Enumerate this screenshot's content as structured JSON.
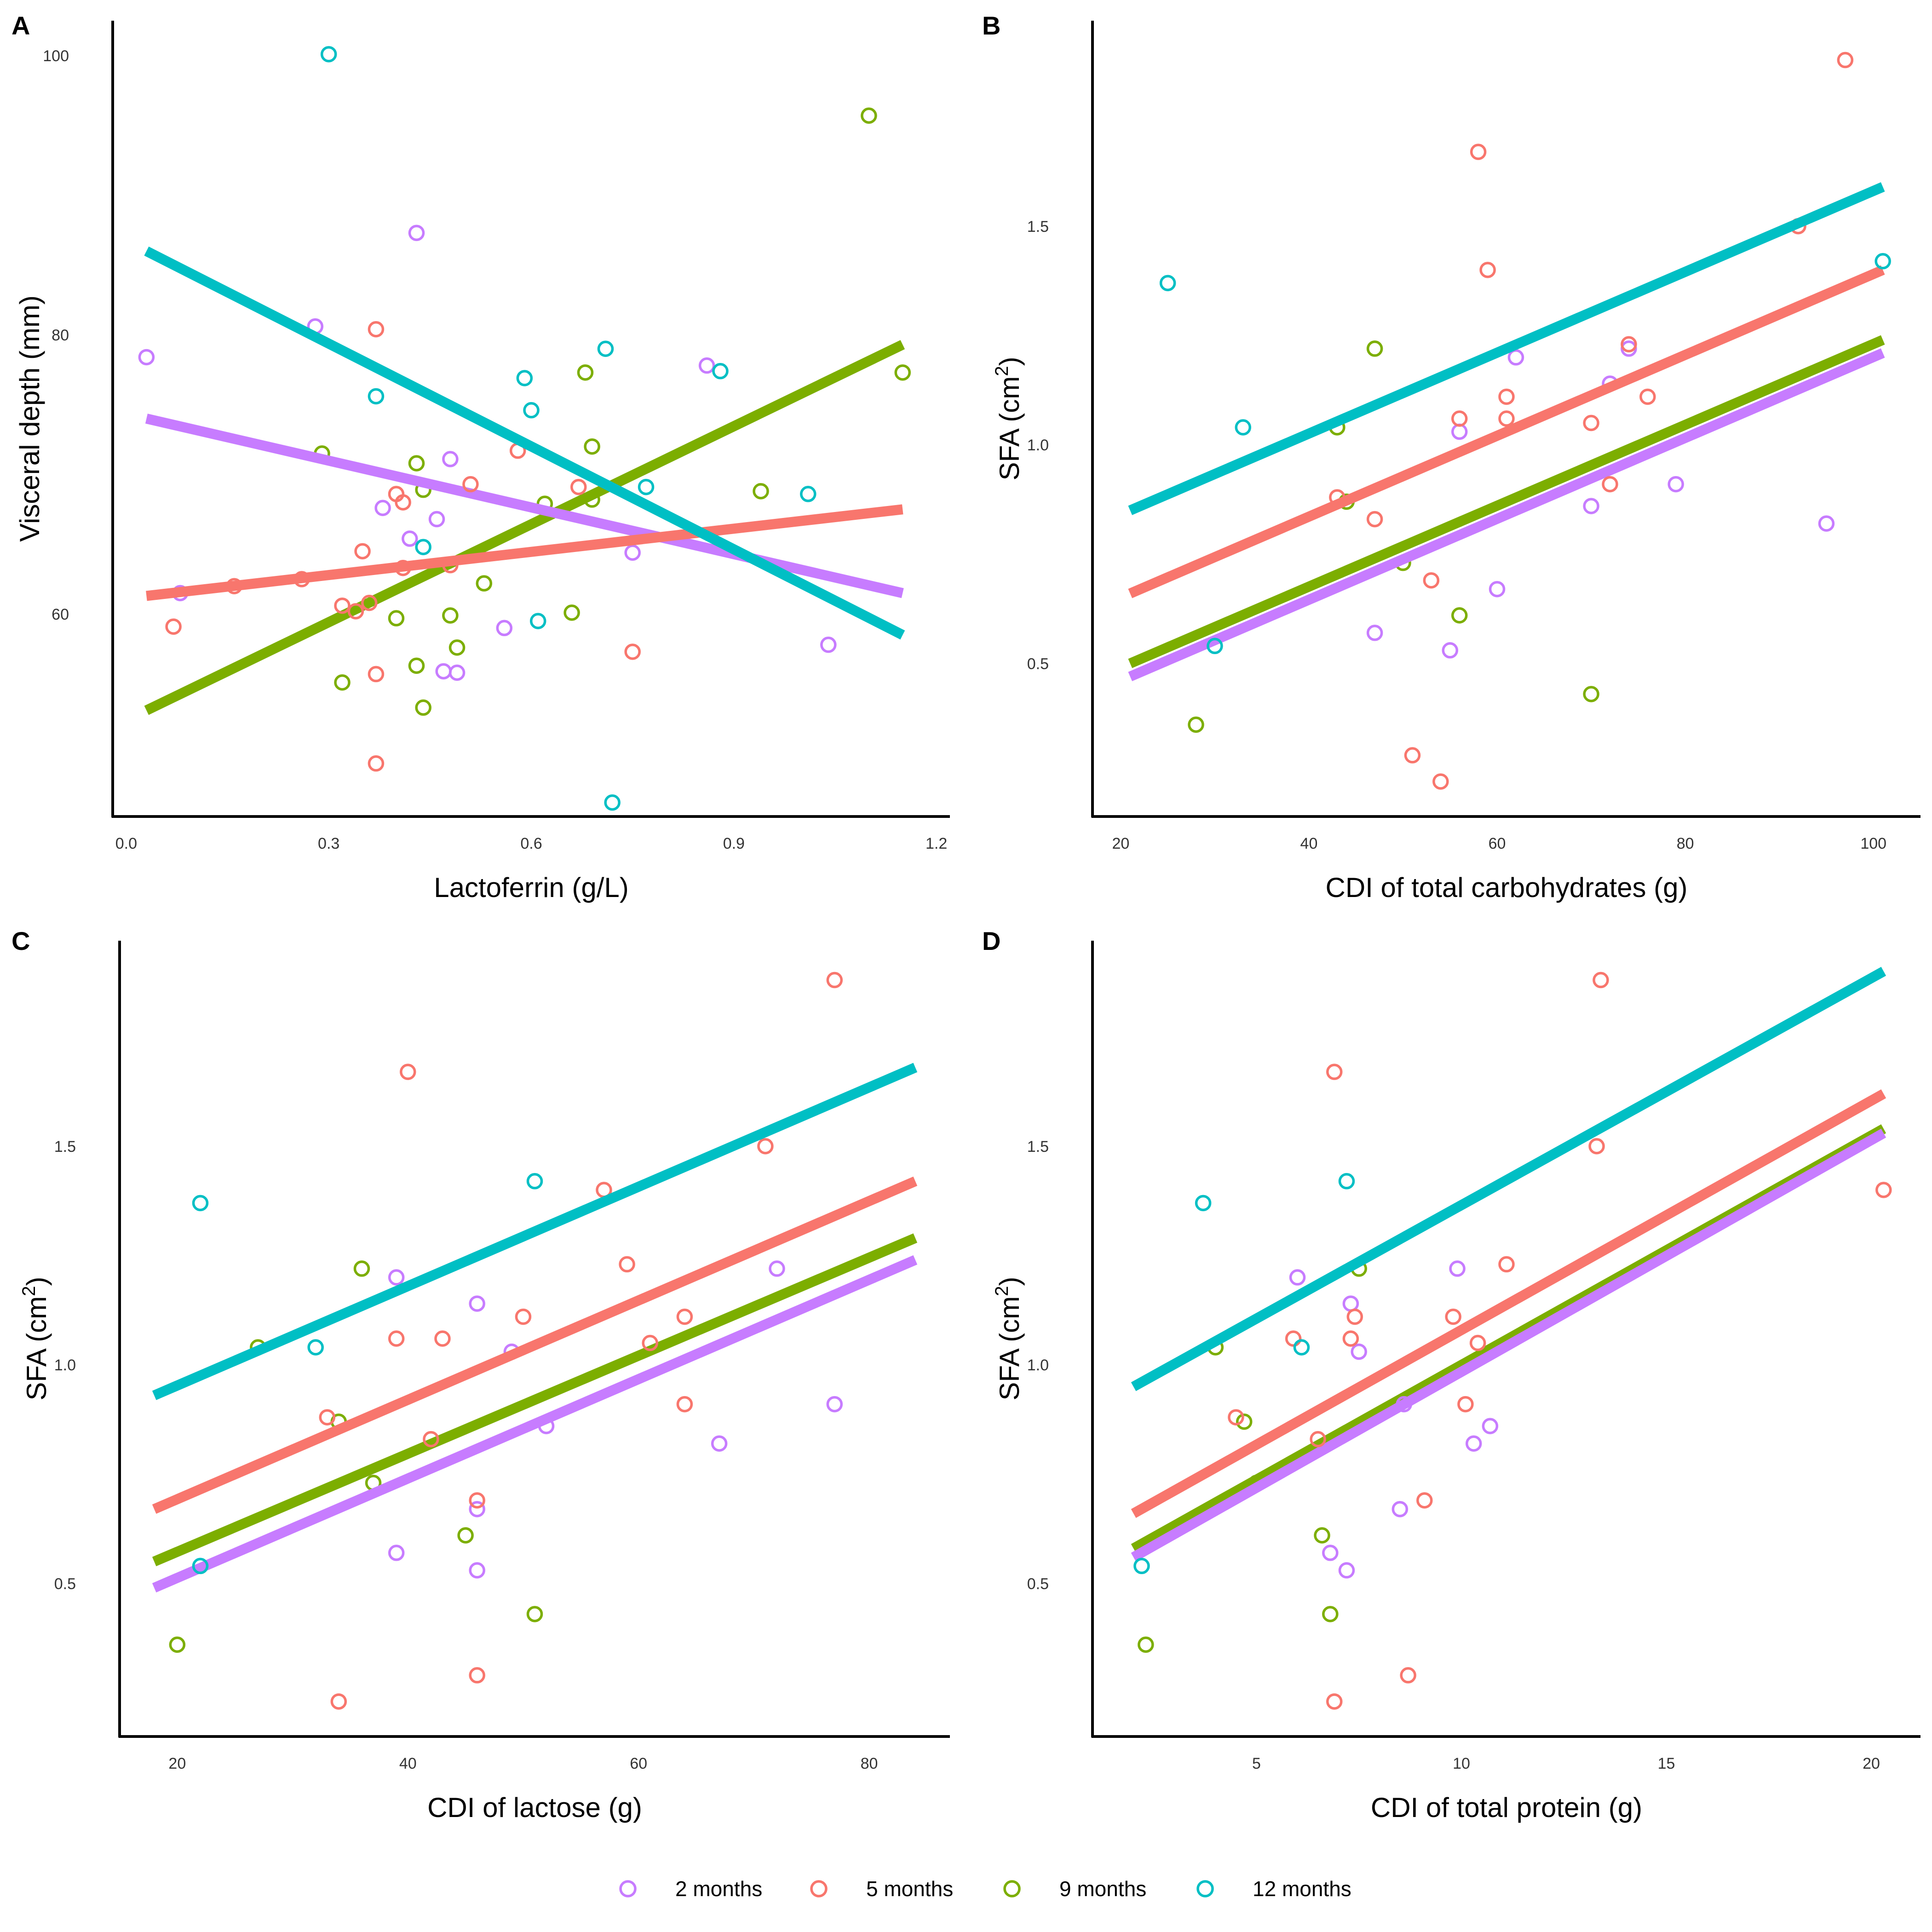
{
  "legend": [
    {
      "label": "2 months",
      "color": "#C77CFF"
    },
    {
      "label": "5 months",
      "color": "#F8766D"
    },
    {
      "label": "9 months",
      "color": "#7CAE00"
    },
    {
      "label": "12 months",
      "color": "#00BFC4"
    }
  ],
  "chart_data": [
    {
      "panel": "A",
      "type": "scatter",
      "xlabel": "Lactoferrin (g/L)",
      "ylabel": "Visceral depth (mm)",
      "xlim": [
        -0.02,
        1.22
      ],
      "ylim": [
        45.5,
        102.5
      ],
      "xticks": [
        0.0,
        0.3,
        0.6,
        0.9,
        1.2
      ],
      "xtick_labels": [
        "0.0",
        "0.3",
        "0.6",
        "0.9",
        "1.2"
      ],
      "yticks": [
        60,
        80,
        100
      ],
      "ytick_labels": [
        "60",
        "80",
        "100"
      ],
      "series": [
        {
          "name": "2 months",
          "points": [
            [
              0.03,
              78.4
            ],
            [
              0.08,
              61.5
            ],
            [
              0.28,
              80.6
            ],
            [
              0.38,
              67.6
            ],
            [
              0.43,
              87.3
            ],
            [
              0.42,
              65.4
            ],
            [
              0.46,
              66.8
            ],
            [
              0.48,
              71.1
            ],
            [
              0.47,
              55.9
            ],
            [
              0.49,
              55.8
            ],
            [
              0.56,
              59.0
            ],
            [
              0.75,
              64.4
            ],
            [
              0.86,
              77.8
            ],
            [
              1.04,
              57.8
            ]
          ],
          "fit": [
            [
              0.03,
              74.0
            ],
            [
              1.15,
              61.5
            ]
          ]
        },
        {
          "name": "5 months",
          "points": [
            [
              0.07,
              59.1
            ],
            [
              0.16,
              62.0
            ],
            [
              0.26,
              62.5
            ],
            [
              0.32,
              60.6
            ],
            [
              0.34,
              60.2
            ],
            [
              0.35,
              64.5
            ],
            [
              0.36,
              60.8
            ],
            [
              0.37,
              55.7
            ],
            [
              0.37,
              80.4
            ],
            [
              0.37,
              49.3
            ],
            [
              0.4,
              68.6
            ],
            [
              0.41,
              68.0
            ],
            [
              0.41,
              63.3
            ],
            [
              0.48,
              63.5
            ],
            [
              0.51,
              69.3
            ],
            [
              0.58,
              71.7
            ],
            [
              0.67,
              69.1
            ],
            [
              0.75,
              57.3
            ]
          ],
          "fit": [
            [
              0.03,
              61.3
            ],
            [
              1.15,
              67.5
            ]
          ]
        },
        {
          "name": "9 months",
          "points": [
            [
              0.29,
              71.5
            ],
            [
              0.32,
              55.1
            ],
            [
              0.4,
              59.7
            ],
            [
              0.43,
              70.8
            ],
            [
              0.43,
              56.3
            ],
            [
              0.44,
              53.3
            ],
            [
              0.44,
              68.9
            ],
            [
              0.48,
              59.9
            ],
            [
              0.49,
              57.6
            ],
            [
              0.53,
              62.2
            ],
            [
              0.62,
              67.9
            ],
            [
              0.66,
              60.1
            ],
            [
              0.68,
              77.3
            ],
            [
              0.69,
              72.0
            ],
            [
              0.69,
              68.2
            ],
            [
              0.94,
              68.8
            ],
            [
              1.1,
              95.7
            ],
            [
              1.15,
              77.3
            ]
          ],
          "fit": [
            [
              0.03,
              53.1
            ],
            [
              1.15,
              79.3
            ]
          ]
        },
        {
          "name": "12 months",
          "points": [
            [
              0.3,
              100.1
            ],
            [
              0.37,
              75.6
            ],
            [
              0.44,
              64.8
            ],
            [
              0.59,
              76.9
            ],
            [
              0.6,
              74.6
            ],
            [
              0.61,
              59.5
            ],
            [
              0.71,
              79.0
            ],
            [
              0.72,
              46.5
            ],
            [
              0.77,
              69.1
            ],
            [
              0.88,
              77.4
            ],
            [
              1.01,
              68.6
            ]
          ],
          "fit": [
            [
              0.03,
              86.0
            ],
            [
              1.15,
              58.5
            ]
          ]
        }
      ]
    },
    {
      "panel": "B",
      "type": "scatter",
      "xlabel": "CDI of total carbohydrates (g)",
      "ylabel_main": "SFA (cm",
      "ylabel_sup": "2",
      "ylabel_end": ")",
      "xlim": [
        17,
        105
      ],
      "ylim": [
        0.15,
        1.97
      ],
      "xticks": [
        20,
        40,
        60,
        80,
        100
      ],
      "xtick_labels": [
        "20",
        "40",
        "60",
        "80",
        "100"
      ],
      "yticks": [
        0.5,
        1.0,
        1.5
      ],
      "ytick_labels": [
        "0.5",
        "1.0",
        "1.5"
      ],
      "series": [
        {
          "name": "2 months",
          "points": [
            [
              47,
              0.57
            ],
            [
              55,
              0.53
            ],
            [
              56,
              1.03
            ],
            [
              60,
              0.67
            ],
            [
              62,
              1.2
            ],
            [
              70,
              0.86
            ],
            [
              72,
              1.14
            ],
            [
              74,
              1.22
            ],
            [
              79,
              0.91
            ],
            [
              95,
              0.82
            ]
          ],
          "fit": [
            [
              21,
              0.47
            ],
            [
              101,
              1.21
            ]
          ]
        },
        {
          "name": "5 months",
          "points": [
            [
              43,
              0.88
            ],
            [
              47,
              0.83
            ],
            [
              51,
              0.29
            ],
            [
              53,
              0.69
            ],
            [
              54,
              0.23
            ],
            [
              56,
              1.06
            ],
            [
              58,
              1.67
            ],
            [
              59,
              1.4
            ],
            [
              61,
              1.11
            ],
            [
              61,
              1.06
            ],
            [
              70,
              1.05
            ],
            [
              72,
              0.91
            ],
            [
              74,
              1.23
            ],
            [
              76,
              1.11
            ],
            [
              92,
              1.5
            ],
            [
              97,
              1.88
            ]
          ],
          "fit": [
            [
              21,
              0.66
            ],
            [
              101,
              1.4
            ]
          ]
        },
        {
          "name": "9 months",
          "points": [
            [
              28,
              0.36
            ],
            [
              43,
              1.04
            ],
            [
              44,
              0.87
            ],
            [
              47,
              1.22
            ],
            [
              50,
              0.73
            ],
            [
              56,
              0.61
            ],
            [
              70,
              0.43
            ]
          ],
          "fit": [
            [
              21,
              0.5
            ],
            [
              101,
              1.24
            ]
          ]
        },
        {
          "name": "12 months",
          "points": [
            [
              25,
              1.37
            ],
            [
              30,
              0.54
            ],
            [
              33,
              1.04
            ],
            [
              101,
              1.42
            ]
          ],
          "fit": [
            [
              21,
              0.85
            ],
            [
              101,
              1.59
            ]
          ]
        }
      ]
    },
    {
      "panel": "C",
      "type": "scatter",
      "xlabel": "CDI of lactose (g)",
      "ylabel_main": "SFA (cm",
      "ylabel_sup": "2",
      "ylabel_end": ")",
      "xlim": [
        15,
        87
      ],
      "ylim": [
        0.15,
        1.97
      ],
      "xticks": [
        20,
        40,
        60,
        80
      ],
      "xtick_labels": [
        "20",
        "40",
        "60",
        "80"
      ],
      "yticks": [
        0.5,
        1.0,
        1.5
      ],
      "ytick_labels": [
        "0.5",
        "1.0",
        "1.5"
      ],
      "series": [
        {
          "name": "2 months",
          "points": [
            [
              39,
              0.57
            ],
            [
              39,
              1.2
            ],
            [
              46,
              1.14
            ],
            [
              46,
              0.67
            ],
            [
              46,
              0.53
            ],
            [
              49,
              1.03
            ],
            [
              52,
              0.86
            ],
            [
              67,
              0.82
            ],
            [
              72,
              1.22
            ],
            [
              77,
              0.91
            ]
          ],
          "fit": [
            [
              18,
              0.49
            ],
            [
              84,
              1.24
            ]
          ]
        },
        {
          "name": "5 months",
          "points": [
            [
              33,
              0.88
            ],
            [
              34,
              0.23
            ],
            [
              39,
              1.06
            ],
            [
              40,
              1.67
            ],
            [
              42,
              0.83
            ],
            [
              43,
              1.06
            ],
            [
              46,
              0.69
            ],
            [
              46,
              0.29
            ],
            [
              50,
              1.11
            ],
            [
              57,
              1.4
            ],
            [
              59,
              1.23
            ],
            [
              61,
              1.05
            ],
            [
              64,
              0.91
            ],
            [
              64,
              1.11
            ],
            [
              71,
              1.5
            ],
            [
              77,
              1.88
            ]
          ],
          "fit": [
            [
              18,
              0.67
            ],
            [
              84,
              1.42
            ]
          ]
        },
        {
          "name": "9 months",
          "points": [
            [
              20,
              0.36
            ],
            [
              27,
              1.04
            ],
            [
              34,
              0.87
            ],
            [
              36,
              1.22
            ],
            [
              37,
              0.73
            ],
            [
              45,
              0.61
            ],
            [
              51,
              0.43
            ]
          ],
          "fit": [
            [
              18,
              0.55
            ],
            [
              84,
              1.29
            ]
          ]
        },
        {
          "name": "12 months",
          "points": [
            [
              22,
              1.37
            ],
            [
              22,
              0.54
            ],
            [
              32,
              1.04
            ],
            [
              51,
              1.42
            ]
          ],
          "fit": [
            [
              18,
              0.93
            ],
            [
              84,
              1.68
            ]
          ]
        }
      ]
    },
    {
      "panel": "D",
      "type": "scatter",
      "xlabel": "CDI of total protein (g)",
      "ylabel_main": "SFA (cm",
      "ylabel_sup": "2",
      "ylabel_end": ")",
      "xlim": [
        1.0,
        21.2
      ],
      "ylim": [
        0.15,
        1.97
      ],
      "xticks": [
        5,
        10,
        15,
        20
      ],
      "xtick_labels": [
        "5",
        "10",
        "15",
        "20"
      ],
      "yticks": [
        0.5,
        1.0,
        1.5
      ],
      "ytick_labels": [
        "0.5",
        "1.0",
        "1.5"
      ],
      "series": [
        {
          "name": "2 months",
          "points": [
            [
              6.0,
              1.2
            ],
            [
              6.8,
              0.57
            ],
            [
              7.2,
              0.53
            ],
            [
              7.3,
              1.14
            ],
            [
              7.5,
              1.03
            ],
            [
              8.5,
              0.67
            ],
            [
              8.6,
              0.91
            ],
            [
              9.9,
              1.22
            ],
            [
              10.3,
              0.82
            ],
            [
              10.7,
              0.86
            ]
          ],
          "fit": [
            [
              2.0,
              0.56
            ],
            [
              20.3,
              1.53
            ]
          ]
        },
        {
          "name": "5 months",
          "points": [
            [
              4.5,
              0.88
            ],
            [
              5.9,
              1.06
            ],
            [
              6.5,
              0.83
            ],
            [
              6.9,
              0.23
            ],
            [
              6.9,
              1.67
            ],
            [
              7.3,
              1.06
            ],
            [
              7.4,
              1.11
            ],
            [
              8.7,
              0.29
            ],
            [
              9.1,
              0.69
            ],
            [
              9.8,
              1.11
            ],
            [
              10.1,
              0.91
            ],
            [
              10.4,
              1.05
            ],
            [
              11.1,
              1.23
            ],
            [
              13.3,
              1.5
            ],
            [
              13.4,
              1.88
            ],
            [
              20.3,
              1.4
            ]
          ],
          "fit": [
            [
              2.0,
              0.66
            ],
            [
              20.3,
              1.62
            ]
          ]
        },
        {
          "name": "9 months",
          "points": [
            [
              2.3,
              0.36
            ],
            [
              4.0,
              1.04
            ],
            [
              4.7,
              0.87
            ],
            [
              5.0,
              0.73
            ],
            [
              6.6,
              0.61
            ],
            [
              6.8,
              0.43
            ],
            [
              7.5,
              1.22
            ]
          ],
          "fit": [
            [
              2.0,
              0.58
            ],
            [
              20.3,
              1.54
            ]
          ]
        },
        {
          "name": "12 months",
          "points": [
            [
              2.2,
              0.54
            ],
            [
              3.7,
              1.37
            ],
            [
              6.1,
              1.04
            ],
            [
              7.2,
              1.42
            ]
          ],
          "fit": [
            [
              2.0,
              0.95
            ],
            [
              20.3,
              1.9
            ]
          ]
        }
      ]
    }
  ]
}
